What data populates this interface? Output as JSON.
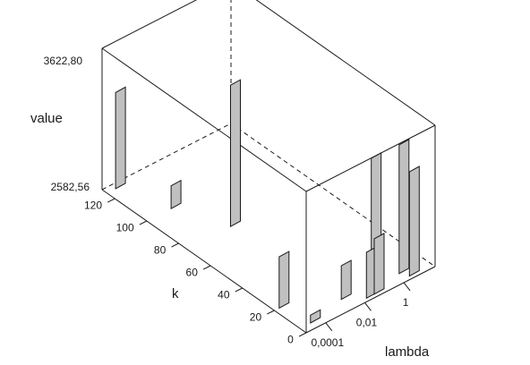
{
  "chart_data": {
    "type": "bar3d",
    "zlabel": "value",
    "xlabel": "k",
    "ylabel": "lambda",
    "z_ticks": [
      "2582,56",
      "3622,80"
    ],
    "z_range": [
      2582.56,
      3622.8
    ],
    "k_ticks": [
      "0",
      "20",
      "40",
      "60",
      "80",
      "100",
      "120"
    ],
    "k_range": [
      0,
      128
    ],
    "lambda_ticks": [
      "0,0001",
      "0,01",
      "1"
    ],
    "lambda_range": [
      -5,
      1.6
    ],
    "bars": [
      {
        "k": 125,
        "lambda": -4.3,
        "low": 2582.56,
        "high": 3290
      },
      {
        "k": 100,
        "lambda": -3.5,
        "low": 2582.56,
        "high": 2750
      },
      {
        "k": 75,
        "lambda": -2.5,
        "low": 2582.56,
        "high": 3622.8
      },
      {
        "k": 20,
        "lambda": -4.5,
        "low": 2582.56,
        "high": 2960
      },
      {
        "k": 4,
        "lambda": -4.2,
        "low": 2582.56,
        "high": 2640
      },
      {
        "k": 8,
        "lambda": -2.3,
        "low": 2582.56,
        "high": 2830
      },
      {
        "k": 10,
        "lambda": -0.6,
        "low": 2600,
        "high": 3480
      },
      {
        "k": 2,
        "lambda": -1.5,
        "low": 2582.56,
        "high": 2920
      },
      {
        "k": 2,
        "lambda": -1.1,
        "low": 2582.56,
        "high": 2990
      },
      {
        "k": 6,
        "lambda": 0.5,
        "low": 2582.56,
        "high": 3530
      },
      {
        "k": 2,
        "lambda": 0.7,
        "low": 2582.56,
        "high": 3350
      }
    ]
  }
}
